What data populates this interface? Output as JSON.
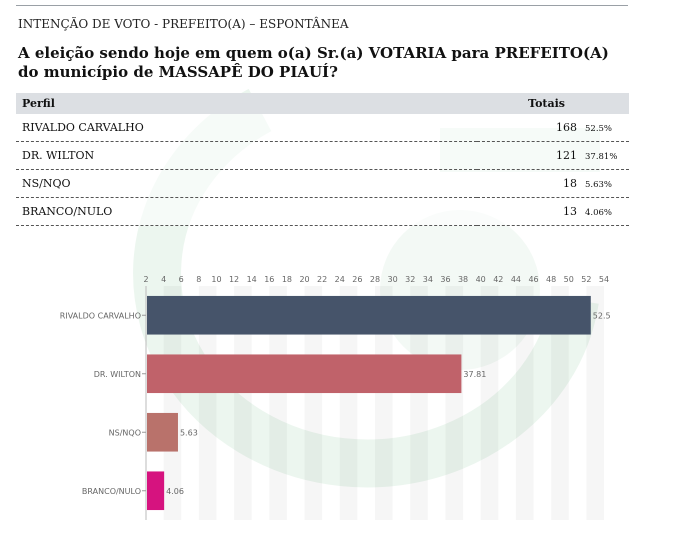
{
  "header": {
    "title": "INTENÇÃO DE VOTO - PREFEITO(A) – ESPONTÂNEA"
  },
  "question": "A eleição sendo hoje em quem o(a) Sr.(a) VOTARIA para PREFEITO(A) do município de MASSAPÊ DO PIAUÍ?",
  "table": {
    "col_profile": "Perfil",
    "col_totals": "Totais",
    "rows": [
      {
        "label": "RIVALDO CARVALHO",
        "count": "168",
        "pct": "52.5%"
      },
      {
        "label": "DR. WILTON",
        "count": "121",
        "pct": "37.81%"
      },
      {
        "label": "NS/NQO",
        "count": "18",
        "pct": "5.63%"
      },
      {
        "label": "BRANCO/NULO",
        "count": "13",
        "pct": "4.06%"
      }
    ]
  },
  "colors": {
    "bar_colors": [
      "#46546a",
      "#c0626a",
      "#b9726b",
      "#d6137f"
    ],
    "watermark": "#2f9a4e"
  },
  "chart_data": {
    "type": "bar",
    "orientation": "horizontal",
    "categories": [
      "RIVALDO CARVALHO",
      "DR. WILTON",
      "NS/NQO",
      "BRANCO/NULO"
    ],
    "values": [
      52.5,
      37.81,
      5.63,
      4.06
    ],
    "value_labels": [
      "52.5",
      "37.81",
      "5.63",
      "4.06"
    ],
    "xlim": [
      2,
      54
    ],
    "x_ticks": [
      "2",
      "4",
      "6",
      "8",
      "10",
      "12",
      "14",
      "16",
      "18",
      "20",
      "22",
      "24",
      "26",
      "28",
      "30",
      "32",
      "34",
      "36",
      "38",
      "40",
      "42",
      "44",
      "46",
      "48",
      "50",
      "52",
      "54"
    ],
    "x_tick_position": "top",
    "grid": "vertical"
  }
}
